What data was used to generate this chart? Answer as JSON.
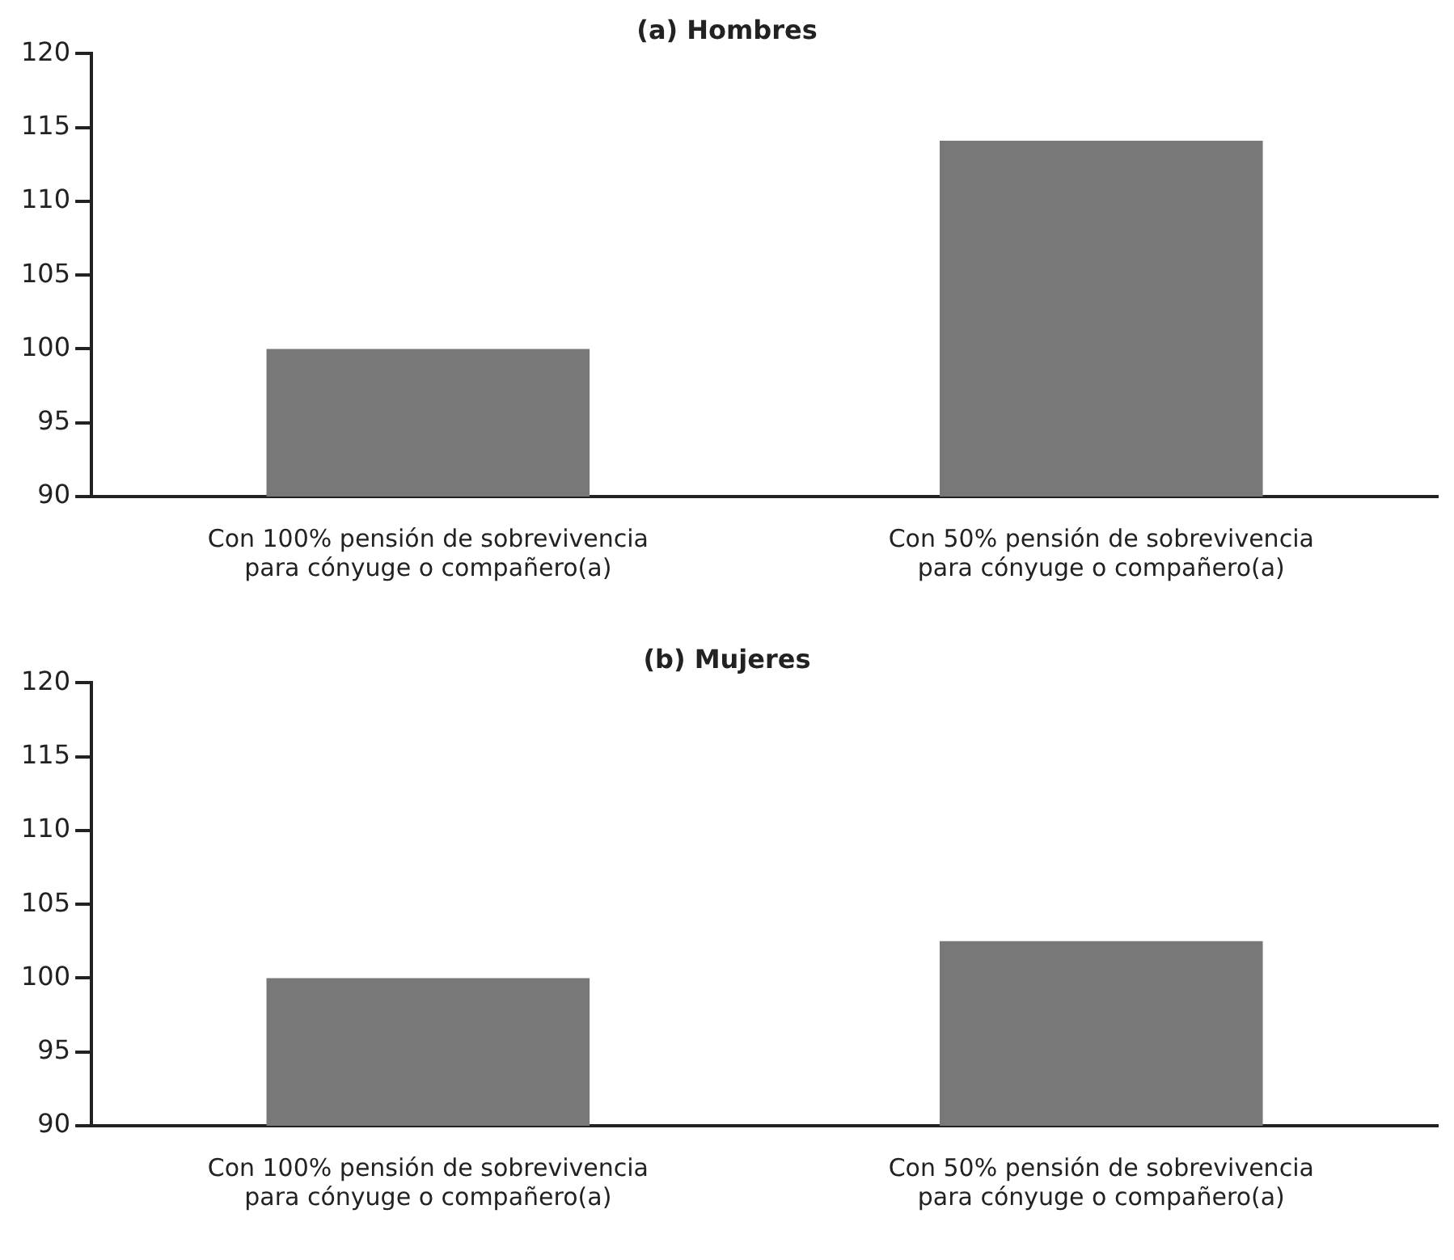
{
  "chart_data": [
    {
      "type": "bar",
      "title": "(a) Hombres",
      "categories": [
        "Con 100% pensión de sobrevivencia\npara cónyuge o compañero(a)",
        "Con 50% pensión de sobrevivencia\npara cónyuge o compañero(a)"
      ],
      "values": [
        100,
        114.1
      ],
      "color": "#787878",
      "ylim": [
        90,
        120
      ],
      "yticks": [
        90,
        95,
        100,
        105,
        110,
        115,
        120
      ],
      "grid": false,
      "legend": false
    },
    {
      "type": "bar",
      "title": "(b) Mujeres",
      "categories": [
        "Con 100% pensión de sobrevivencia\npara cónyuge o compañero(a)",
        "Con 50% pensión de sobrevivencia\npara cónyuge o compañero(a)"
      ],
      "values": [
        100,
        102.5
      ],
      "color": "#787878",
      "ylim": [
        90,
        120
      ],
      "yticks": [
        90,
        95,
        100,
        105,
        110,
        115,
        120
      ],
      "grid": false,
      "legend": false
    }
  ]
}
